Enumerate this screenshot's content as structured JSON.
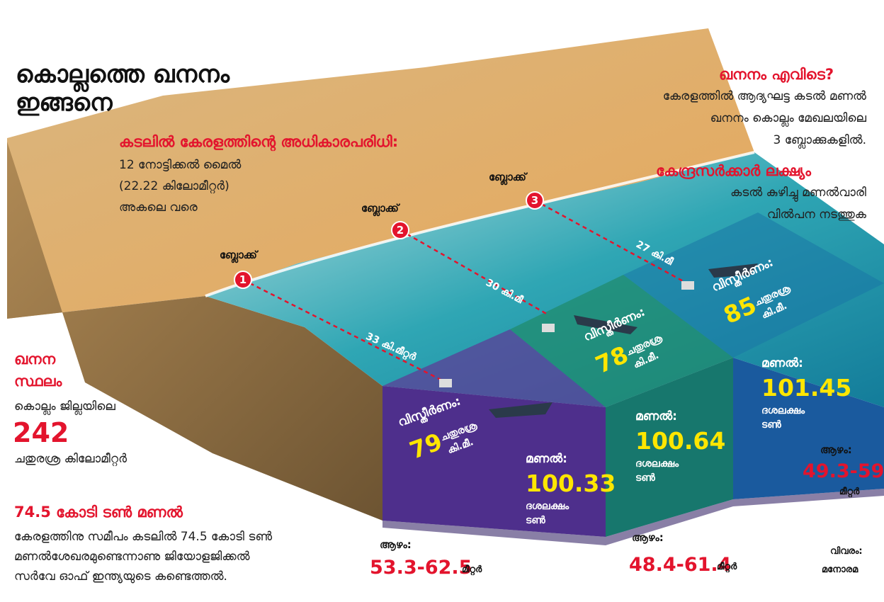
{
  "title": [
    "കൊല്ലത്തെ ഖനനം",
    "ഇങ്ങനെ"
  ],
  "jurisdiction": {
    "heading": "കടലിൽ കേരളത്തിന്റെ അധികാരപരിധി:",
    "lines": [
      "12 നോട്ടിക്കൽ മൈൽ",
      "(22.22 കിലോമീറ്റർ)",
      "അകലെ വരെ"
    ]
  },
  "location": {
    "heading": "ഖനനം എവിടെ?",
    "lines": [
      "കേരളത്തിൽ ആദ്യഘട്ട കടൽ മണൽ",
      "ഖനനം കൊല്ലം മേഖലയിലെ",
      "3 ബ്ലോക്കുകളിൽ."
    ]
  },
  "aim": {
    "heading": "കേന്ദ്രസർക്കാർ ലക്ഷ്യം",
    "lines": [
      "കടൽ കുഴിച്ചു മണൽവാരി",
      "വിൽപന നടത്തുക"
    ]
  },
  "site": {
    "heading": [
      "ഖനന",
      "സ്ഥലം"
    ],
    "line": "കൊല്ലം ജില്ലയിലെ",
    "value": 242,
    "unit": "ചതുരശ്ര കിലോമീറ്റർ"
  },
  "reserve": {
    "heading": "74.5 കോടി ടൺ മണൽ",
    "lines": [
      "കേരളത്തിനു സമീപം കടലിൽ 74.5 കോടി ടൺ",
      "മണൽശേഖരമുണ്ടെന്നാണു ജിയോളജിക്കൽ",
      "സർവേ ഓഫ് ഇന്ത്യയുടെ കണ്ടെത്തൽ."
    ]
  },
  "blocks": [
    {
      "label": "ബ്ലോക്ക്",
      "number": 1,
      "distance": "33 കി.മീറ്റർ",
      "area": {
        "label": "വിസ്തീർണം:",
        "value": 79,
        "unit": [
          "ചതുരശ്ര",
          "കി.മീ."
        ]
      },
      "sand": {
        "label": "മണൽ:",
        "value": 100.33,
        "unit": [
          "ദശലക്ഷം",
          "ടൺ"
        ]
      },
      "depth": {
        "label": "ആഴം:",
        "value": "53.3-62.5",
        "unit": "മീറ്റർ"
      }
    },
    {
      "label": "ബ്ലോക്ക്",
      "number": 2,
      "distance": "30 കി.മീ",
      "area": {
        "label": "വിസ്തീർണം:",
        "value": 78,
        "unit": [
          "ചതുരശ്ര",
          "കി.മീ."
        ]
      },
      "sand": {
        "label": "മണൽ:",
        "value": 100.64,
        "unit": [
          "ദശലക്ഷം",
          "ടൺ"
        ]
      },
      "depth": {
        "label": "ആഴം:",
        "value": "48.4-61.4",
        "unit": "മീറ്റർ"
      }
    },
    {
      "label": "ബ്ലോക്ക്",
      "number": 3,
      "distance": "27 കി.മീ",
      "area": {
        "label": "വിസ്തീർണം:",
        "value": 85,
        "unit": [
          "ചതുരശ്ര",
          "കി.മീ."
        ]
      },
      "sand": {
        "label": "മണൽ:",
        "value": 101.45,
        "unit": [
          "ദശലക്ഷം",
          "ടൺ"
        ]
      },
      "depth": {
        "label": "ആഴം:",
        "value": "49.3-59",
        "unit": "മീറ്റർ"
      }
    }
  ],
  "credit": [
    "വിവരം:",
    "മനോരമ"
  ]
}
